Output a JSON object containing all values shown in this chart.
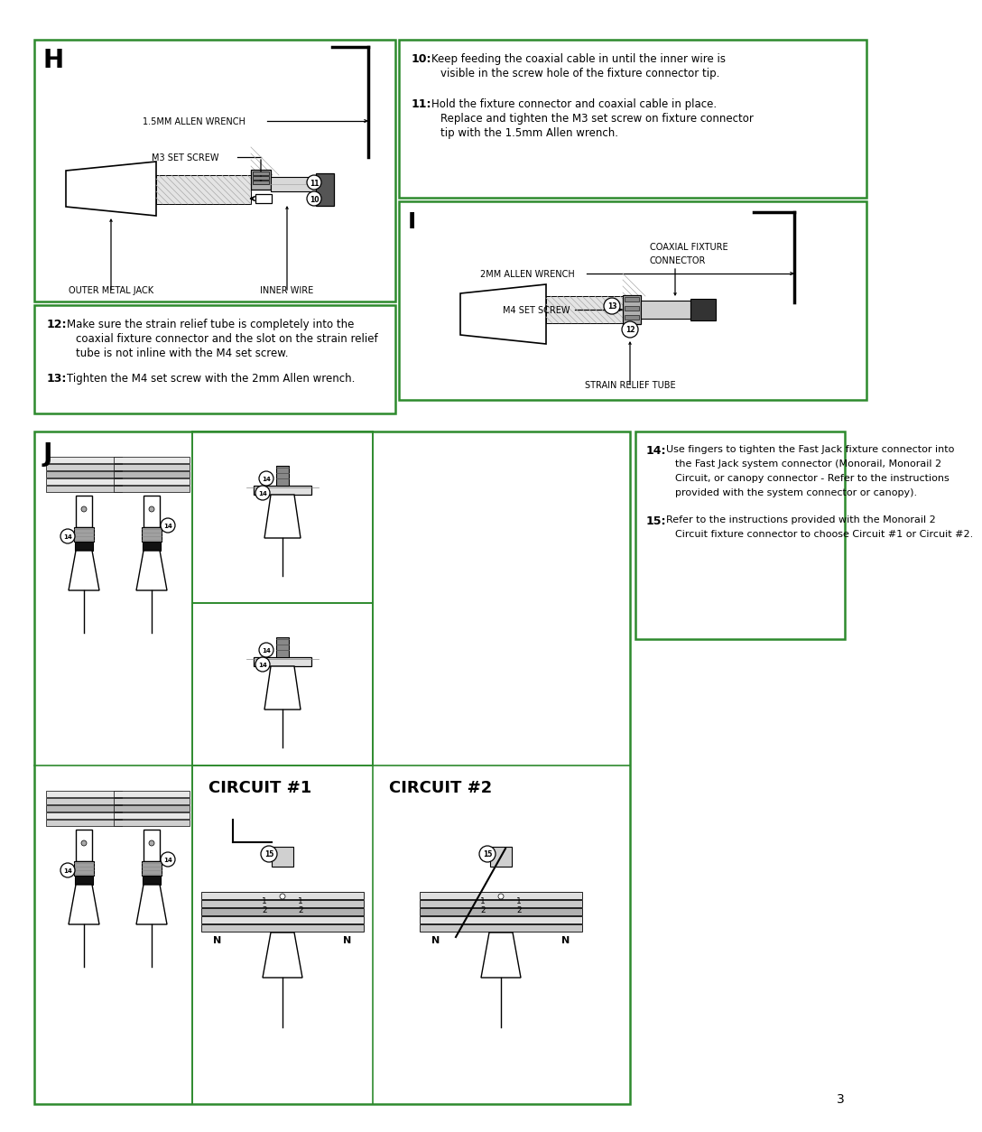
{
  "bg_color": "#ffffff",
  "border_color": "#2d8a2d",
  "text_color": "#000000",
  "page_number": "3",
  "section_H_label": "H",
  "section_I_label": "I",
  "section_J_label": "J",
  "label_1_5mm": "1.5MM ALLEN WRENCH",
  "label_m3": "M3 SET SCREW",
  "label_outer": "OUTER METAL JACK",
  "label_inner": "INNER WIRE",
  "label_11": "11",
  "label_10": "10",
  "label_2mm": "2MM ALLEN WRENCH",
  "label_coaxial_1": "COAXIAL FIXTURE",
  "label_coaxial_2": "CONNECTOR",
  "label_m4": "M4 SET SCREW",
  "label_13": "13",
  "label_12": "12",
  "label_strain": "STRAIN RELIEF TUBE",
  "label_14": "14",
  "label_15": "15",
  "circuit1": "CIRCUIT #1",
  "circuit2": "CIRCUIT #2",
  "step10_num": "10:",
  "step10_a": "Keep feeding the coaxial cable in until the inner wire is",
  "step10_b": "visible in the screw hole of the fixture connector tip.",
  "step11_num": "11:",
  "step11_a": "Hold the fixture connector and coaxial cable in place.",
  "step11_b": "Replace and tighten the M3 set screw on fixture connector",
  "step11_c": "tip with the 1.5mm Allen wrench.",
  "step12_num": "12:",
  "step12_a": "Make sure the strain relief tube is completely into the",
  "step12_b": "coaxial fixture connector and the slot on the strain relief",
  "step12_c": "tube is not inline with the M4 set screw.",
  "step13_num": "13:",
  "step13_a": "Tighten the M4 set screw with the 2mm Allen wrench.",
  "step14_num": "14:",
  "step14_a": "Use fingers to tighten the Fast Jack fixture connector into",
  "step14_b": "the Fast Jack system connector (Monorail, Monorail 2",
  "step14_c": "Circuit, or canopy connector - Refer to the instructions",
  "step14_d": "provided with the system connector or canopy).",
  "step15_num": "15:",
  "step15_a": "Refer to the instructions provided with the Monorail 2",
  "step15_b": "Circuit fixture connector to choose Circuit #1 or Circuit #2."
}
